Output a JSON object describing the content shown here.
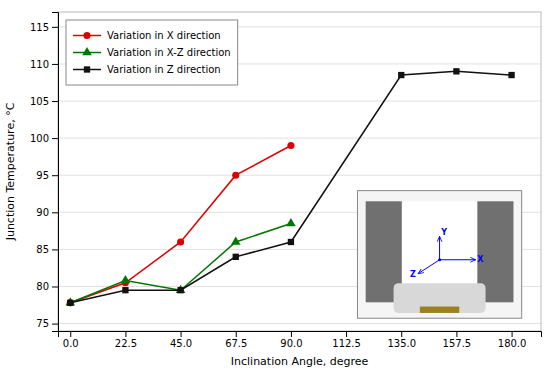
{
  "chart_data": {
    "type": "line",
    "x_label": "Inclination Angle, degree",
    "y_label": "Junction Temperature, °C",
    "series": [
      {
        "name": "Variation in X direction",
        "color": "#dd0000",
        "marker": "circle",
        "line_style": "solid",
        "x": [
          0.0,
          22.5,
          45.0,
          67.5,
          90.0
        ],
        "values": [
          77.8,
          80.5,
          86.0,
          95.0,
          99.0
        ]
      },
      {
        "name": "Variation in X-Z direction",
        "color": "#007700",
        "marker": "triangle",
        "line_style": "solid",
        "x": [
          0.0,
          22.5,
          45.0,
          67.5,
          90.0
        ],
        "values": [
          77.8,
          80.8,
          79.5,
          86.0,
          88.5
        ]
      },
      {
        "name": "Variation in Z direction",
        "color": "#111111",
        "marker": "square",
        "line_style": "solid",
        "x": [
          0.0,
          22.5,
          45.0,
          67.5,
          90.0,
          135.0,
          157.5,
          180.0
        ],
        "values": [
          77.8,
          79.5,
          79.5,
          84.0,
          86.0,
          108.5,
          109.0,
          108.5
        ]
      }
    ],
    "xlim": [
      -5,
      192
    ],
    "ylim": [
      74,
      117
    ],
    "xticks": [
      {
        "value": 0.0,
        "label": "0.0"
      },
      22.5,
      {
        "value": 45.0,
        "label": "45.0"
      },
      67.5,
      {
        "value": 90.0,
        "label": "90.0"
      },
      112.5,
      {
        "value": 135.0,
        "label": "135.0"
      },
      157.5,
      {
        "value": 180.0,
        "label": "180.0"
      }
    ],
    "yticks": [
      75,
      80,
      85,
      90,
      95,
      100,
      105,
      110,
      115
    ],
    "grid": "y",
    "legend": "upper left",
    "annotations": [
      "X",
      "Y",
      "Z"
    ]
  }
}
